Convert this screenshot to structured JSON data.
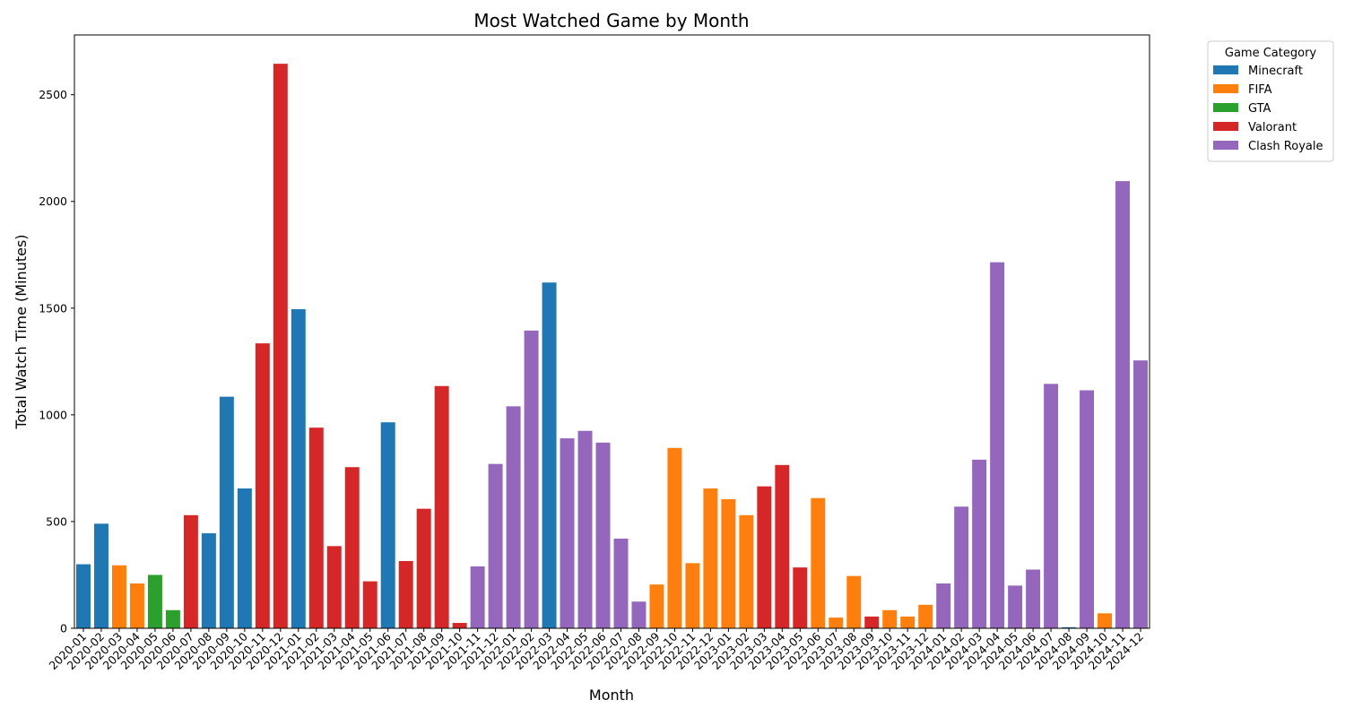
{
  "chart_data": {
    "type": "bar",
    "title": "Most Watched Game by Month",
    "xlabel": "Month",
    "ylabel": "Total Watch Time (Minutes)",
    "ylim": [
      0,
      2780
    ],
    "yticks": [
      0,
      500,
      1000,
      1500,
      2000,
      2500
    ],
    "grid": false,
    "legend": {
      "title": "Game Category",
      "placement": "outside-top-right",
      "entries": [
        {
          "name": "Minecraft",
          "color": "#1f77b4"
        },
        {
          "name": "FIFA",
          "color": "#ff7f0e"
        },
        {
          "name": "GTA",
          "color": "#2ca02c"
        },
        {
          "name": "Valorant",
          "color": "#d62728"
        },
        {
          "name": "Clash Royale",
          "color": "#9467bd"
        }
      ]
    },
    "categories": [
      "2020-01",
      "2020-02",
      "2020-03",
      "2020-04",
      "2020-05",
      "2020-06",
      "2020-07",
      "2020-08",
      "2020-09",
      "2020-10",
      "2020-11",
      "2020-12",
      "2021-01",
      "2021-02",
      "2021-03",
      "2021-04",
      "2021-05",
      "2021-06",
      "2021-07",
      "2021-08",
      "2021-09",
      "2021-10",
      "2021-11",
      "2021-12",
      "2022-01",
      "2022-02",
      "2022-03",
      "2022-04",
      "2022-05",
      "2022-06",
      "2022-07",
      "2022-08",
      "2022-09",
      "2022-10",
      "2022-11",
      "2022-12",
      "2023-01",
      "2023-02",
      "2023-03",
      "2023-04",
      "2023-05",
      "2023-06",
      "2023-07",
      "2023-08",
      "2023-09",
      "2023-10",
      "2023-11",
      "2023-12",
      "2024-01",
      "2024-02",
      "2024-03",
      "2024-04",
      "2024-05",
      "2024-06",
      "2024-07",
      "2024-08",
      "2024-09",
      "2024-10",
      "2024-11",
      "2024-12"
    ],
    "values": [
      300,
      490,
      295,
      210,
      250,
      85,
      530,
      445,
      1085,
      655,
      1335,
      2645,
      1495,
      940,
      385,
      755,
      220,
      965,
      315,
      560,
      1135,
      25,
      290,
      770,
      1040,
      1395,
      1620,
      890,
      925,
      870,
      420,
      125,
      205,
      845,
      305,
      655,
      605,
      530,
      665,
      765,
      285,
      610,
      50,
      245,
      55,
      85,
      55,
      110,
      210,
      570,
      790,
      1715,
      200,
      275,
      1145,
      5,
      1115,
      70,
      2095,
      1255
    ],
    "game": [
      "Minecraft",
      "Minecraft",
      "FIFA",
      "FIFA",
      "GTA",
      "GTA",
      "Valorant",
      "Minecraft",
      "Minecraft",
      "Minecraft",
      "Valorant",
      "Valorant",
      "Minecraft",
      "Valorant",
      "Valorant",
      "Valorant",
      "Valorant",
      "Minecraft",
      "Valorant",
      "Valorant",
      "Valorant",
      "Valorant",
      "Clash Royale",
      "Clash Royale",
      "Clash Royale",
      "Clash Royale",
      "Minecraft",
      "Clash Royale",
      "Clash Royale",
      "Clash Royale",
      "Clash Royale",
      "Clash Royale",
      "FIFA",
      "FIFA",
      "FIFA",
      "FIFA",
      "FIFA",
      "FIFA",
      "Valorant",
      "Valorant",
      "Valorant",
      "FIFA",
      "FIFA",
      "FIFA",
      "Valorant",
      "FIFA",
      "FIFA",
      "FIFA",
      "Clash Royale",
      "Clash Royale",
      "Clash Royale",
      "Clash Royale",
      "Clash Royale",
      "Clash Royale",
      "Clash Royale",
      "Minecraft",
      "Clash Royale",
      "FIFA",
      "Clash Royale",
      "Clash Royale"
    ]
  }
}
